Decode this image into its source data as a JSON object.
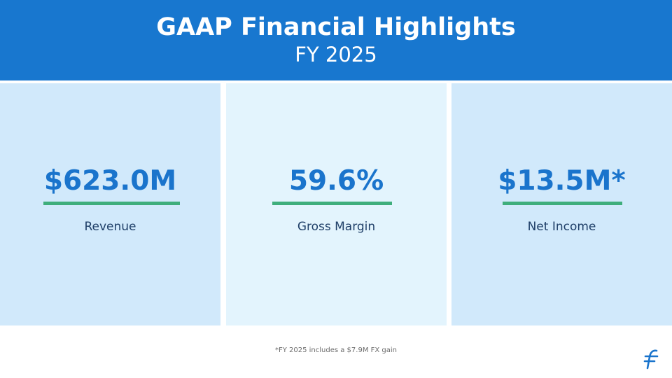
{
  "header": {
    "title": "GAAP Financial Highlights",
    "subtitle": "FY 2025"
  },
  "metrics": [
    {
      "value": "$623.0M",
      "label": "Revenue"
    },
    {
      "value": "59.6%",
      "label": "Gross Margin"
    },
    {
      "value": "$13.5M*",
      "label": "Net Income"
    }
  ],
  "footnote": "*FY 2025 includes a $7.9M FX gain",
  "logo": {
    "icon": "brand-logo-icon"
  },
  "colors": {
    "header_bg": "#1877cf",
    "card_bg": "#d1e9fb",
    "card_bg_alt": "#e3f4fd",
    "value_text": "#1a74cc",
    "accent_underline": "#3fae7c",
    "label_text": "#1f3f68"
  }
}
